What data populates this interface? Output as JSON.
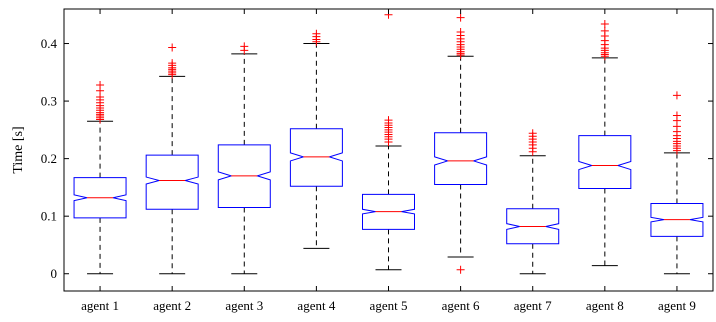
{
  "chart_data": {
    "type": "boxplot",
    "title": "",
    "xlabel": "",
    "ylabel": "Time [s]",
    "ylim": [
      -0.03,
      0.46
    ],
    "yticks": [
      0,
      0.1,
      0.2,
      0.3,
      0.4
    ],
    "yticklabels": [
      "0",
      "0.1",
      "0.2",
      "0.3",
      "0.4"
    ],
    "notched": true,
    "grid": false,
    "colors": {
      "box": "#0000ff",
      "median": "#ff0000",
      "whisker": "#000000",
      "outlier": "#ff0000",
      "axis": "#000000"
    },
    "categories": [
      "agent 1",
      "agent 2",
      "agent 3",
      "agent 4",
      "agent 5",
      "agent 6",
      "agent 7",
      "agent 8",
      "agent 9"
    ],
    "boxes": [
      {
        "q1": 0.097,
        "median": 0.132,
        "q3": 0.167,
        "notch_low": 0.127,
        "notch_high": 0.137,
        "whisker_low": 0.0,
        "whisker_high": 0.265,
        "outliers": [
          0.268,
          0.271,
          0.274,
          0.277,
          0.28,
          0.284,
          0.288,
          0.292,
          0.297,
          0.302,
          0.307,
          0.318,
          0.328
        ]
      },
      {
        "q1": 0.112,
        "median": 0.162,
        "q3": 0.206,
        "notch_low": 0.156,
        "notch_high": 0.168,
        "whisker_low": 0.0,
        "whisker_high": 0.343,
        "outliers": [
          0.346,
          0.349,
          0.352,
          0.355,
          0.358,
          0.362,
          0.366,
          0.393
        ]
      },
      {
        "q1": 0.115,
        "median": 0.17,
        "q3": 0.224,
        "notch_low": 0.163,
        "notch_high": 0.177,
        "whisker_low": 0.0,
        "whisker_high": 0.382,
        "outliers": [
          0.388,
          0.395
        ]
      },
      {
        "q1": 0.152,
        "median": 0.203,
        "q3": 0.252,
        "notch_low": 0.196,
        "notch_high": 0.21,
        "whisker_low": 0.044,
        "whisker_high": 0.4,
        "outliers": [
          0.403,
          0.407,
          0.412,
          0.417
        ]
      },
      {
        "q1": 0.077,
        "median": 0.108,
        "q3": 0.138,
        "notch_low": 0.104,
        "notch_high": 0.112,
        "whisker_low": 0.007,
        "whisker_high": 0.222,
        "outliers": [
          0.229,
          0.234,
          0.238,
          0.242,
          0.246,
          0.25,
          0.254,
          0.258,
          0.262,
          0.267,
          0.45
        ]
      },
      {
        "q1": 0.155,
        "median": 0.196,
        "q3": 0.245,
        "notch_low": 0.189,
        "notch_high": 0.203,
        "whisker_low": 0.029,
        "whisker_high": 0.378,
        "outliers": [
          0.007,
          0.38,
          0.383,
          0.386,
          0.39,
          0.394,
          0.398,
          0.403,
          0.408,
          0.414,
          0.42,
          0.445
        ]
      },
      {
        "q1": 0.052,
        "median": 0.082,
        "q3": 0.113,
        "notch_low": 0.077,
        "notch_high": 0.087,
        "whisker_low": 0.0,
        "whisker_high": 0.205,
        "outliers": [
          0.212,
          0.218,
          0.224,
          0.229,
          0.234,
          0.239,
          0.244
        ]
      },
      {
        "q1": 0.148,
        "median": 0.188,
        "q3": 0.24,
        "notch_low": 0.181,
        "notch_high": 0.195,
        "whisker_low": 0.014,
        "whisker_high": 0.375,
        "outliers": [
          0.378,
          0.381,
          0.384,
          0.388,
          0.392,
          0.398,
          0.405,
          0.413,
          0.422,
          0.434
        ]
      },
      {
        "q1": 0.065,
        "median": 0.094,
        "q3": 0.122,
        "notch_low": 0.09,
        "notch_high": 0.098,
        "whisker_low": 0.0,
        "whisker_high": 0.21,
        "outliers": [
          0.214,
          0.218,
          0.222,
          0.226,
          0.23,
          0.235,
          0.24,
          0.247,
          0.256,
          0.266,
          0.275,
          0.31
        ]
      }
    ]
  }
}
